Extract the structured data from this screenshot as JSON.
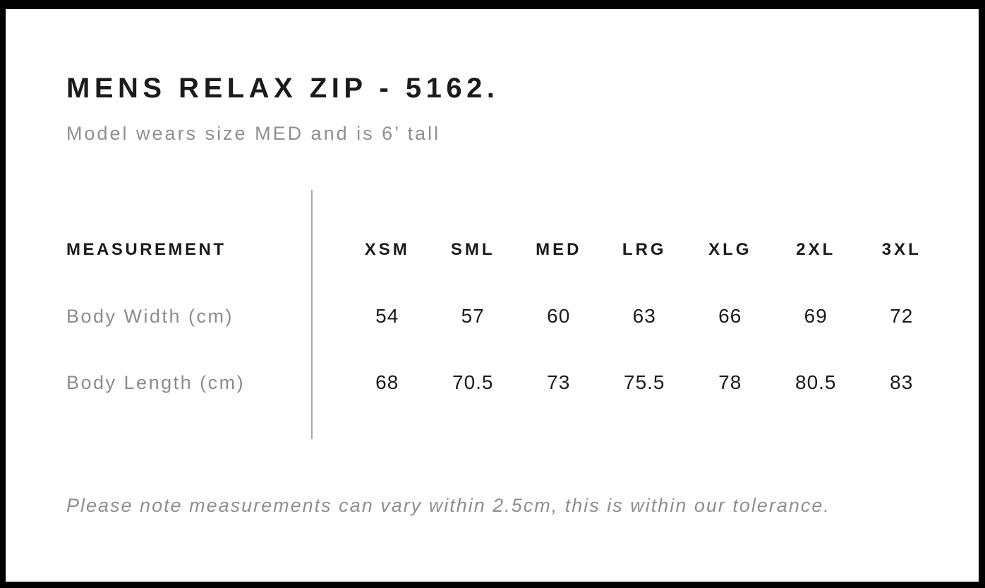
{
  "page": {
    "title": "MENS RELAX ZIP - 5162.",
    "subtitle": "Model wears size MED and is 6’ tall",
    "footer_note": "Please note measurements can vary within 2.5cm, this is within our tolerance."
  },
  "size_chart": {
    "measurement_header": "MEASUREMENT",
    "sizes": [
      "XSM",
      "SML",
      "MED",
      "LRG",
      "XLG",
      "2XL",
      "3XL"
    ],
    "rows": [
      {
        "label": "Body Width (cm)",
        "values": [
          "54",
          "57",
          "60",
          "63",
          "66",
          "69",
          "72"
        ]
      },
      {
        "label": "Body Length (cm)",
        "values": [
          "68",
          "70.5",
          "73",
          "75.5",
          "78",
          "80.5",
          "83"
        ]
      }
    ]
  },
  "colors": {
    "frame": "#000000",
    "background": "#ffffff",
    "text_primary": "#1b1b1b",
    "text_muted": "#8f8f8f",
    "divider": "#a8a8a8"
  }
}
